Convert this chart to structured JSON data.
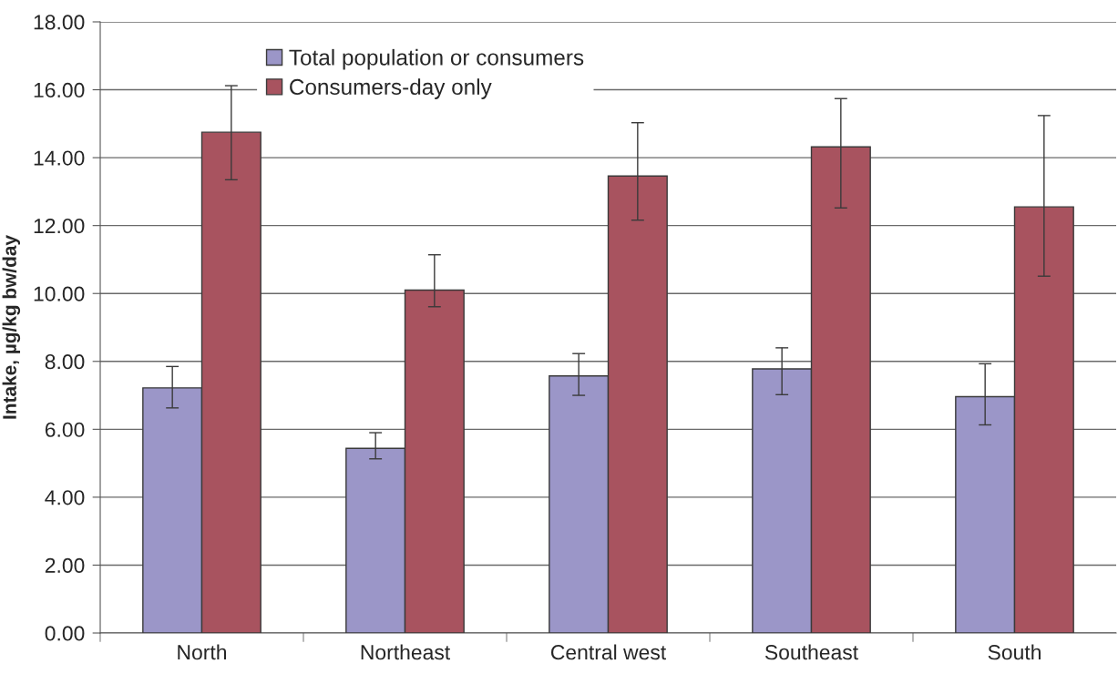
{
  "chart_data": {
    "type": "bar",
    "ylabel": "Intake, µg/kg bw/day",
    "categories": [
      "North",
      "Northeast",
      "Central west",
      "Southeast",
      "South"
    ],
    "series": [
      {
        "name": "Total population or consumers",
        "color": "#9b96c8",
        "values": [
          7.22,
          5.44,
          7.57,
          7.78,
          6.96
        ],
        "errors": [
          [
            6.63,
            7.85
          ],
          [
            5.13,
            5.9
          ],
          [
            7.0,
            8.23
          ],
          [
            7.02,
            8.4
          ],
          [
            6.13,
            7.93
          ]
        ]
      },
      {
        "name": "Consumers-day only",
        "color": "#a8535f",
        "values": [
          14.75,
          10.1,
          13.46,
          14.32,
          12.55
        ],
        "errors": [
          [
            13.35,
            16.12
          ],
          [
            9.61,
            11.14
          ],
          [
            12.16,
            15.03
          ],
          [
            12.52,
            15.74
          ],
          [
            10.51,
            15.24
          ]
        ]
      }
    ],
    "ylim": [
      0,
      18
    ],
    "yticks": [
      {
        "value": 0,
        "label": "0.00"
      },
      {
        "value": 2,
        "label": "2.00"
      },
      {
        "value": 4,
        "label": "4.00"
      },
      {
        "value": 6,
        "label": "6.00"
      },
      {
        "value": 8,
        "label": "8.00"
      },
      {
        "value": 10,
        "label": "10.00"
      },
      {
        "value": 12,
        "label": "12.00"
      },
      {
        "value": 14,
        "label": "14.00"
      },
      {
        "value": 16,
        "label": "16.00"
      },
      {
        "value": 18,
        "label": "18.00"
      }
    ],
    "grid": "y",
    "legend": "top"
  }
}
